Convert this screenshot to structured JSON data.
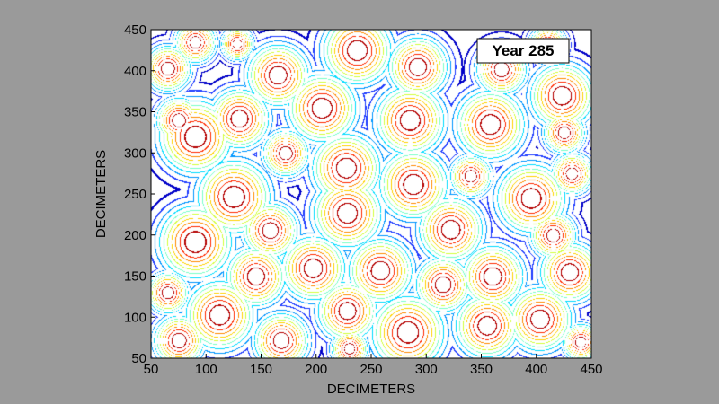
{
  "chart_data": {
    "type": "contour",
    "title": "",
    "annotation": "Year 285",
    "xlabel": "DECIMETERS",
    "ylabel": "DECIMETERS",
    "xlim": [
      50,
      450
    ],
    "ylim": [
      50,
      450
    ],
    "xticks": [
      "50",
      "100",
      "150",
      "200",
      "250",
      "300",
      "350",
      "400",
      "450"
    ],
    "yticks": [
      "50",
      "100",
      "150",
      "200",
      "250",
      "300",
      "350",
      "400",
      "450"
    ],
    "levels": 11,
    "colormap": [
      "#000080",
      "#0000c8",
      "#1e3cff",
      "#0096ff",
      "#00dcff",
      "#7affc8",
      "#d2ff3c",
      "#ffd200",
      "#ff8c00",
      "#ff2a00",
      "#b40000"
    ],
    "background": "#ffffff",
    "peaks": [
      {
        "x": 90,
        "y": 435,
        "r": 18
      },
      {
        "x": 128,
        "y": 433,
        "r": 14
      },
      {
        "x": 65,
        "y": 403,
        "r": 20
      },
      {
        "x": 165,
        "y": 395,
        "r": 27
      },
      {
        "x": 237,
        "y": 425,
        "r": 30
      },
      {
        "x": 292,
        "y": 405,
        "r": 26
      },
      {
        "x": 368,
        "y": 402,
        "r": 22
      },
      {
        "x": 410,
        "y": 432,
        "r": 16
      },
      {
        "x": 423,
        "y": 370,
        "r": 28
      },
      {
        "x": 75,
        "y": 340,
        "r": 20
      },
      {
        "x": 130,
        "y": 342,
        "r": 26
      },
      {
        "x": 205,
        "y": 355,
        "r": 30
      },
      {
        "x": 285,
        "y": 340,
        "r": 30
      },
      {
        "x": 358,
        "y": 335,
        "r": 30
      },
      {
        "x": 425,
        "y": 325,
        "r": 18
      },
      {
        "x": 90,
        "y": 320,
        "r": 32
      },
      {
        "x": 172,
        "y": 300,
        "r": 20
      },
      {
        "x": 227,
        "y": 282,
        "r": 30
      },
      {
        "x": 288,
        "y": 262,
        "r": 30
      },
      {
        "x": 340,
        "y": 272,
        "r": 18
      },
      {
        "x": 395,
        "y": 245,
        "r": 30
      },
      {
        "x": 432,
        "y": 275,
        "r": 18
      },
      {
        "x": 125,
        "y": 247,
        "r": 32
      },
      {
        "x": 228,
        "y": 227,
        "r": 30
      },
      {
        "x": 158,
        "y": 206,
        "r": 24
      },
      {
        "x": 322,
        "y": 207,
        "r": 28
      },
      {
        "x": 90,
        "y": 192,
        "r": 32
      },
      {
        "x": 415,
        "y": 200,
        "r": 20
      },
      {
        "x": 145,
        "y": 150,
        "r": 26
      },
      {
        "x": 197,
        "y": 160,
        "r": 28
      },
      {
        "x": 258,
        "y": 157,
        "r": 28
      },
      {
        "x": 315,
        "y": 140,
        "r": 24
      },
      {
        "x": 360,
        "y": 150,
        "r": 27
      },
      {
        "x": 430,
        "y": 155,
        "r": 26
      },
      {
        "x": 65,
        "y": 130,
        "r": 18
      },
      {
        "x": 112,
        "y": 103,
        "r": 30
      },
      {
        "x": 228,
        "y": 108,
        "r": 26
      },
      {
        "x": 283,
        "y": 82,
        "r": 32
      },
      {
        "x": 355,
        "y": 90,
        "r": 28
      },
      {
        "x": 403,
        "y": 98,
        "r": 28
      },
      {
        "x": 168,
        "y": 72,
        "r": 24
      },
      {
        "x": 75,
        "y": 72,
        "r": 22
      },
      {
        "x": 440,
        "y": 70,
        "r": 16
      },
      {
        "x": 230,
        "y": 62,
        "r": 16
      }
    ]
  }
}
